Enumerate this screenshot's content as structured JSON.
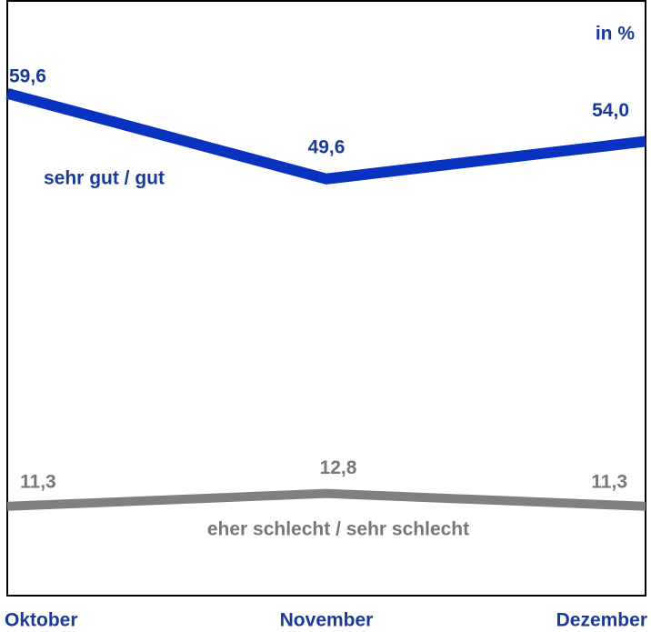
{
  "chart_data": {
    "type": "line",
    "unit_label": "in %",
    "categories": [
      "Oktober",
      "November",
      "Dezember"
    ],
    "series": [
      {
        "name": "sehr gut / gut",
        "color": "#0a32c0",
        "values": [
          59.6,
          49.6,
          54.0
        ],
        "value_labels": [
          "59,6",
          "49,6",
          "54,0"
        ]
      },
      {
        "name": "eher schlecht / sehr schlecht",
        "color": "#808080",
        "values": [
          11.3,
          12.8,
          11.3
        ],
        "value_labels": [
          "11,3",
          "12,8",
          "11,3"
        ]
      }
    ],
    "ylim": [
      0,
      70
    ]
  }
}
